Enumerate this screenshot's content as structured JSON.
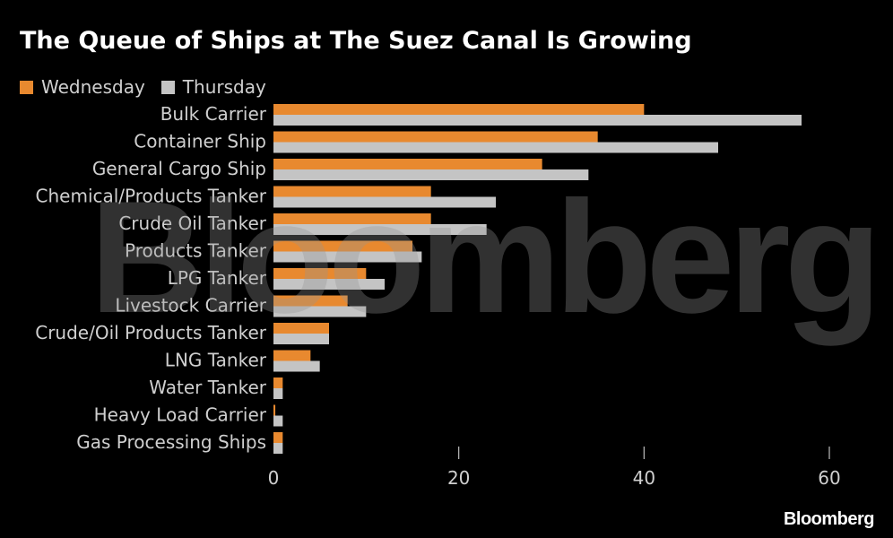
{
  "chart_data": {
    "type": "bar",
    "orientation": "horizontal",
    "title": "The Queue of Ships at The Suez Canal Is Growing",
    "categories": [
      "Bulk Carrier",
      "Container Ship",
      "General Cargo Ship",
      "Chemical/Products Tanker",
      "Crude Oil Tanker",
      "Products Tanker",
      "LPG Tanker",
      "Livestock Carrier",
      "Crude/Oil Products Tanker",
      "LNG Tanker",
      "Water Tanker",
      "Heavy Load Carrier",
      "Gas Processing Ships"
    ],
    "series": [
      {
        "name": "Wednesday",
        "color": "#e8892f",
        "values": [
          40,
          35,
          29,
          17,
          17,
          15,
          10,
          8,
          6,
          4,
          1,
          0.2,
          1
        ]
      },
      {
        "name": "Thursday",
        "color": "#c4c4c4",
        "values": [
          57,
          48,
          34,
          24,
          23,
          16,
          12,
          10,
          6,
          5,
          1,
          1,
          1
        ]
      }
    ],
    "xlim": [
      0,
      60
    ],
    "xticks": [
      0,
      20,
      40,
      60
    ],
    "xlabel": "",
    "ylabel": "",
    "grid": false,
    "legend": "top-left"
  },
  "watermark": "Bloomberg",
  "brand": "Bloomberg",
  "colors": {
    "background": "#000000",
    "label_text": "#cfcfcf"
  }
}
